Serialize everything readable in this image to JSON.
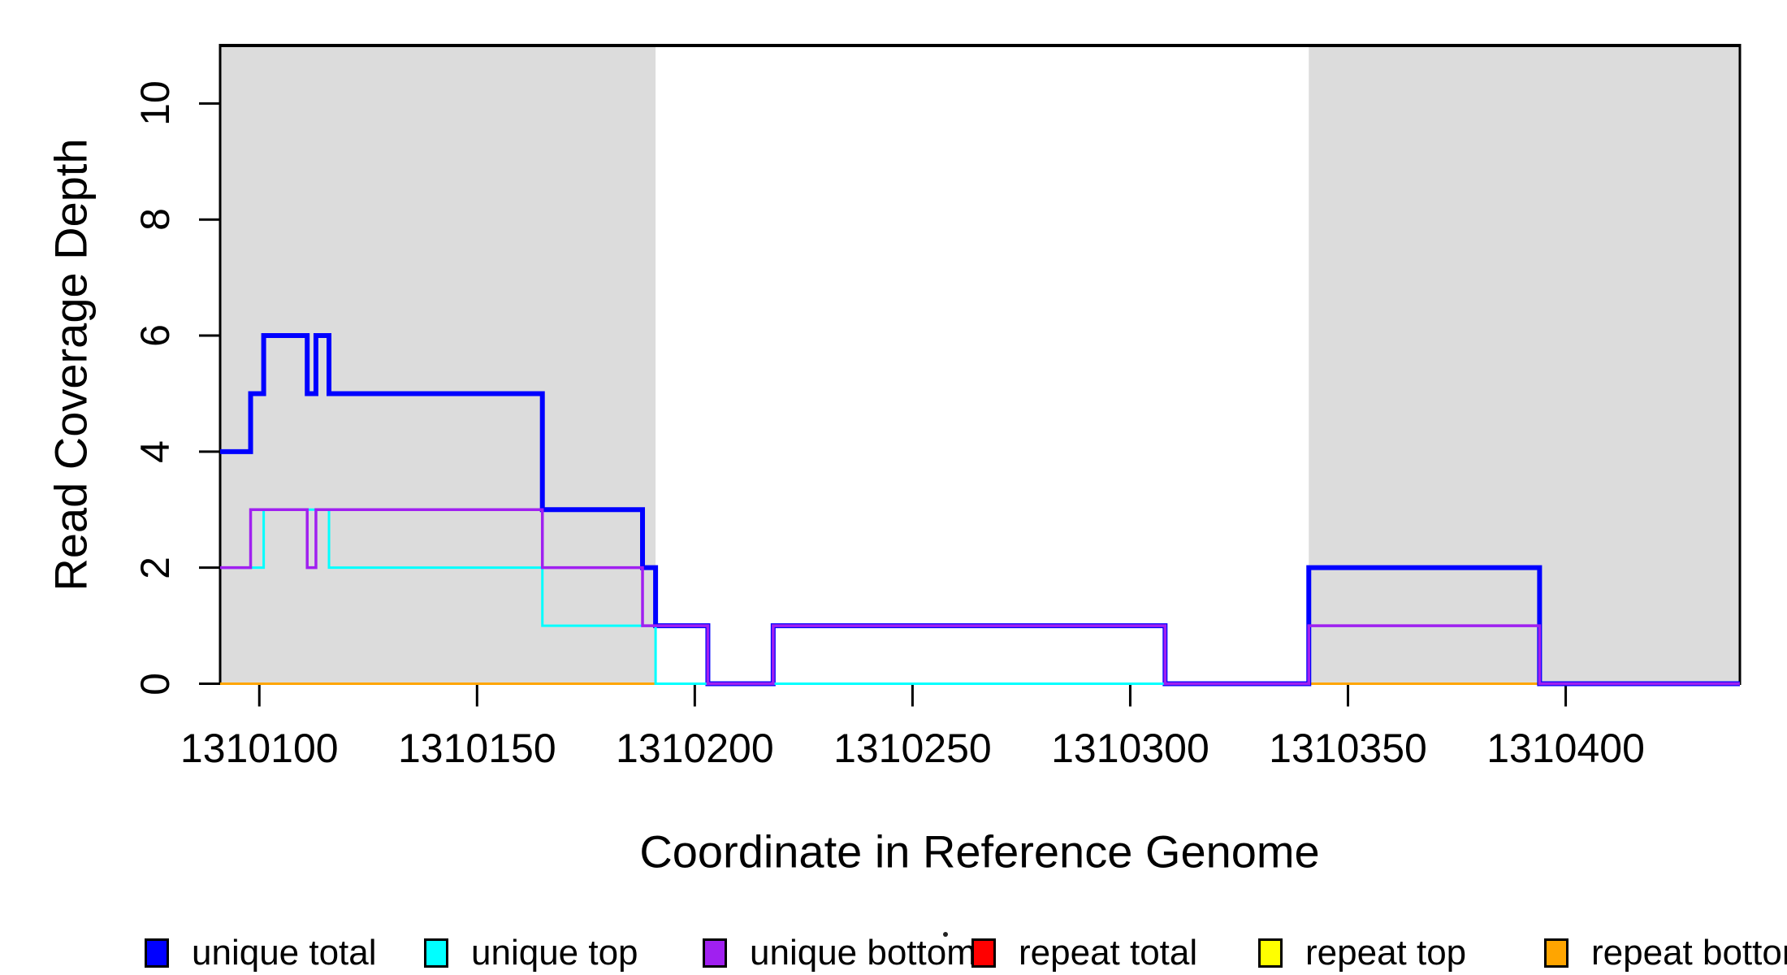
{
  "figure": {
    "y_axis_title": "Read Coverage Depth",
    "x_axis_title": "Coordinate in Reference Genome"
  },
  "legend": {
    "items": [
      {
        "label": "unique total",
        "color": "#0000FF"
      },
      {
        "label": "unique top",
        "color": "#00FFFF"
      },
      {
        "label": "unique bottom",
        "color": "#A020F0"
      },
      {
        "label": "repeat total",
        "color": "#FF0000"
      },
      {
        "label": "repeat top",
        "color": "#FFFF00"
      },
      {
        "label": "repeat bottom",
        "color": "#FFA500"
      }
    ]
  },
  "chart_data": {
    "type": "line",
    "subtype": "step-coverage",
    "xlabel": "Coordinate in Reference Genome",
    "ylabel": "Read Coverage Depth",
    "xlim": [
      1310091,
      1310440
    ],
    "ylim": [
      0,
      11
    ],
    "xticks": [
      1310100,
      1310150,
      1310200,
      1310250,
      1310300,
      1310350,
      1310400
    ],
    "yticks": [
      0,
      2,
      4,
      6,
      8,
      10
    ],
    "grid": false,
    "legend_position": "bottom",
    "highlight_color": "#DCDCDC",
    "repeat_regions": [
      [
        1310091,
        1310191
      ],
      [
        1310341,
        1310440
      ]
    ],
    "series": [
      {
        "name": "repeat total",
        "color": "#FF0000",
        "width": 3,
        "steps": [
          [
            1310091,
            0
          ]
        ]
      },
      {
        "name": "repeat top",
        "color": "#FFFF00",
        "width": 3,
        "steps": [
          [
            1310091,
            0
          ]
        ]
      },
      {
        "name": "repeat bottom",
        "color": "#FFA500",
        "width": 3,
        "steps": [
          [
            1310091,
            0
          ]
        ]
      },
      {
        "name": "unique total",
        "color": "#0000FF",
        "width": 6,
        "steps": [
          [
            1310091,
            4
          ],
          [
            1310098,
            5
          ],
          [
            1310101,
            6
          ],
          [
            1310111,
            5
          ],
          [
            1310113,
            6
          ],
          [
            1310116,
            5
          ],
          [
            1310165,
            3
          ],
          [
            1310188,
            2
          ],
          [
            1310191,
            1
          ],
          [
            1310203,
            0
          ],
          [
            1310218,
            1
          ],
          [
            1310308,
            0
          ],
          [
            1310341,
            2
          ],
          [
            1310394,
            0
          ]
        ]
      },
      {
        "name": "unique top",
        "color": "#00FFFF",
        "width": 3,
        "steps": [
          [
            1310091,
            2
          ],
          [
            1310101,
            3
          ],
          [
            1310116,
            2
          ],
          [
            1310165,
            1
          ],
          [
            1310191,
            0
          ],
          [
            1310341,
            1
          ],
          [
            1310394,
            0
          ]
        ]
      },
      {
        "name": "unique bottom",
        "color": "#A020F0",
        "width": 3.5,
        "steps": [
          [
            1310091,
            2
          ],
          [
            1310098,
            3
          ],
          [
            1310111,
            2
          ],
          [
            1310113,
            3
          ],
          [
            1310165,
            2
          ],
          [
            1310188,
            1
          ],
          [
            1310203,
            0
          ],
          [
            1310218,
            1
          ],
          [
            1310308,
            0
          ],
          [
            1310341,
            1
          ],
          [
            1310394,
            0
          ]
        ]
      }
    ]
  }
}
